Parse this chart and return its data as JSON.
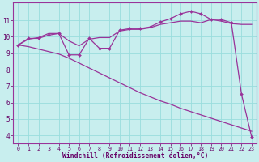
{
  "xlabel": "Windchill (Refroidissement éolien,°C)",
  "background_color": "#c8eeee",
  "grid_color": "#99dddd",
  "line_color": "#993399",
  "xlim_min": -0.5,
  "xlim_max": 23.5,
  "ylim_min": 3.5,
  "ylim_max": 12.1,
  "yticks": [
    4,
    5,
    6,
    7,
    8,
    9,
    10,
    11
  ],
  "xticks": [
    0,
    1,
    2,
    3,
    4,
    5,
    6,
    7,
    8,
    9,
    10,
    11,
    12,
    13,
    14,
    15,
    16,
    17,
    18,
    19,
    20,
    21,
    22,
    23
  ],
  "line_jagged": [
    9.5,
    9.9,
    9.9,
    10.1,
    10.2,
    8.9,
    8.9,
    9.9,
    9.3,
    9.3,
    10.4,
    10.5,
    10.5,
    10.6,
    10.9,
    11.1,
    11.4,
    11.55,
    11.4,
    11.05,
    11.05,
    10.85,
    6.5,
    3.9
  ],
  "line_smooth": [
    9.5,
    9.85,
    9.95,
    10.2,
    10.2,
    9.75,
    9.45,
    9.85,
    9.95,
    9.95,
    10.35,
    10.45,
    10.45,
    10.55,
    10.75,
    10.85,
    10.95,
    10.95,
    10.85,
    11.05,
    10.95,
    10.8,
    10.75,
    10.75
  ],
  "line_diag": [
    9.5,
    9.4,
    9.25,
    9.1,
    8.95,
    8.7,
    8.4,
    8.1,
    7.8,
    7.5,
    7.2,
    6.9,
    6.6,
    6.35,
    6.1,
    5.9,
    5.65,
    5.45,
    5.25,
    5.05,
    4.85,
    4.65,
    4.45,
    4.25
  ]
}
